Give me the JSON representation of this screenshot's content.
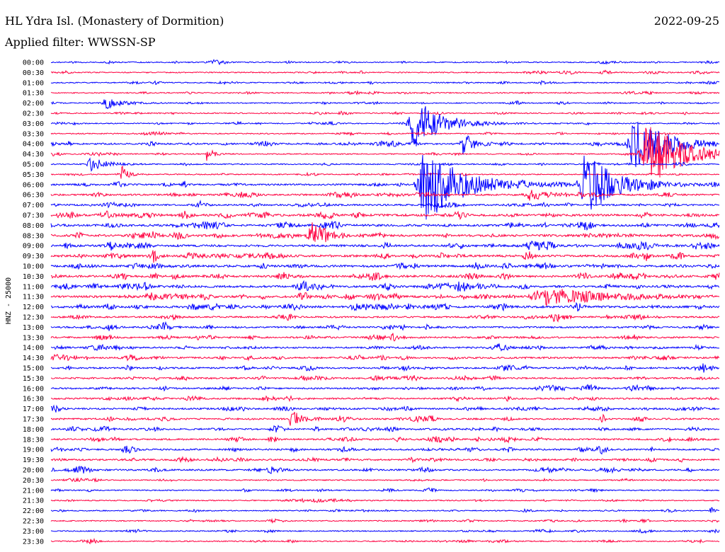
{
  "header": {
    "station": "HL Ydra Isl. (Monastery of Dormition)",
    "filter": "Applied filter: WWSSN-SP",
    "date": "2022-09-25"
  },
  "chart_data": {
    "type": "line",
    "title": "HL Ydra Isl. (Monastery of Dormition)",
    "subtitle": "Applied filter: WWSSN-SP",
    "date": "2022-09-25",
    "ylabel": "HNZ - 25000",
    "rows": [
      "00:00",
      "00:30",
      "01:00",
      "01:30",
      "02:00",
      "02:30",
      "03:00",
      "03:30",
      "04:00",
      "04:30",
      "05:00",
      "05:30",
      "06:00",
      "06:30",
      "07:00",
      "07:30",
      "08:00",
      "08:30",
      "09:00",
      "09:30",
      "10:00",
      "10:30",
      "11:00",
      "11:30",
      "12:00",
      "12:30",
      "13:00",
      "13:30",
      "14:00",
      "14:30",
      "15:00",
      "15:30",
      "16:00",
      "16:30",
      "17:00",
      "17:30",
      "18:00",
      "18:30",
      "19:00",
      "19:30",
      "20:00",
      "20:30",
      "21:00",
      "21:30",
      "22:00",
      "22:30",
      "23:00",
      "23:30"
    ],
    "trace_colors": [
      "#0000ff",
      "#ff0040"
    ],
    "activity_level": [
      1,
      1,
      1,
      1,
      1,
      1,
      1,
      1,
      2,
      1,
      1,
      1,
      2,
      2,
      2,
      3,
      3,
      3,
      3,
      3,
      3,
      3,
      3,
      3,
      3,
      2,
      2,
      2,
      2,
      2,
      2,
      2,
      2,
      2,
      2,
      2,
      2,
      2,
      2,
      2,
      2,
      1,
      1,
      1,
      1,
      1,
      1,
      1
    ],
    "events": [
      {
        "row": 6,
        "minute": 16.3,
        "amplitude": 3.5,
        "duration": 2.5
      },
      {
        "row": 12,
        "minute": 16.8,
        "amplitude": 5.0,
        "duration": 3.5
      },
      {
        "row": 12,
        "minute": 24.0,
        "amplitude": 4.0,
        "duration": 3.0
      },
      {
        "row": 8,
        "minute": 26.2,
        "amplitude": 3.5,
        "duration": 3.0
      },
      {
        "row": 9,
        "minute": 26.8,
        "amplitude": 4.0,
        "duration": 3.5
      },
      {
        "row": 8,
        "minute": 18.5,
        "amplitude": 1.5,
        "duration": 1.0
      },
      {
        "row": 17,
        "minute": 11.7,
        "amplitude": 1.8,
        "duration": 1.2
      },
      {
        "row": 35,
        "minute": 10.8,
        "amplitude": 1.4,
        "duration": 0.8
      },
      {
        "row": 23,
        "minute": 22.5,
        "amplitude": 0.9,
        "duration": 7.0
      },
      {
        "row": 13,
        "minute": 21.5,
        "amplitude": 0.8,
        "duration": 2.0
      },
      {
        "row": 4,
        "minute": 2.5,
        "amplitude": 0.7,
        "duration": 1.5
      },
      {
        "row": 10,
        "minute": 1.8,
        "amplitude": 0.8,
        "duration": 1.5
      },
      {
        "row": 11,
        "minute": 3.2,
        "amplitude": 1.2,
        "duration": 0.5
      },
      {
        "row": 9,
        "minute": 7.0,
        "amplitude": 1.0,
        "duration": 0.5
      },
      {
        "row": 19,
        "minute": 4.6,
        "amplitude": 1.0,
        "duration": 0.3
      },
      {
        "row": 22,
        "minute": 4.2,
        "amplitude": 0.9,
        "duration": 0.3
      },
      {
        "row": 30,
        "minute": 29.3,
        "amplitude": 0.7,
        "duration": 0.6
      },
      {
        "row": 44,
        "minute": 29.6,
        "amplitude": 0.6,
        "duration": 0.3
      }
    ]
  }
}
